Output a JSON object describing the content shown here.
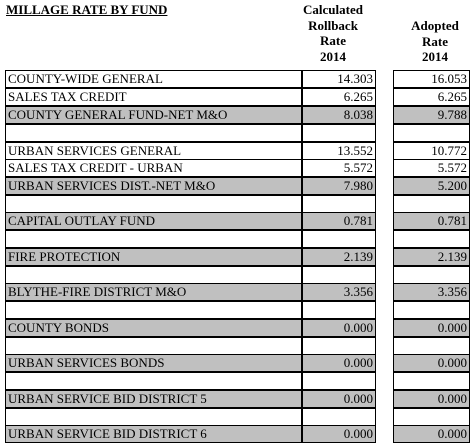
{
  "header": {
    "title": "MILLAGE RATE BY FUND",
    "calc_lines": [
      "Calculated",
      "Rollback",
      "Rate",
      "2014"
    ],
    "adopt_lines": [
      "Adopted",
      "Rate",
      "2014"
    ]
  },
  "rows": [
    {
      "label": "COUNTY-WIDE GENERAL",
      "rollback": "14.303",
      "adopted": "16.053"
    },
    {
      "label": "SALES TAX CREDIT",
      "rollback": "6.265",
      "adopted": "6.265"
    },
    {
      "label": "COUNTY GENERAL FUND-NET M&O",
      "rollback": "8.038",
      "adopted": "9.788"
    },
    {
      "label": "",
      "rollback": "",
      "adopted": ""
    },
    {
      "label": "URBAN SERVICES GENERAL",
      "rollback": "13.552",
      "adopted": "10.772"
    },
    {
      "label": "SALES TAX CREDIT - URBAN",
      "rollback": "5.572",
      "adopted": "5.572"
    },
    {
      "label": "URBAN SERVICES DIST.-NET M&O",
      "rollback": "7.980",
      "adopted": "5.200"
    },
    {
      "label": "",
      "rollback": "",
      "adopted": ""
    },
    {
      "label": "CAPITAL OUTLAY FUND",
      "rollback": "0.781",
      "adopted": "0.781"
    },
    {
      "label": "",
      "rollback": "",
      "adopted": ""
    },
    {
      "label": "FIRE PROTECTION",
      "rollback": "2.139",
      "adopted": "2.139"
    },
    {
      "label": "",
      "rollback": "",
      "adopted": ""
    },
    {
      "label": "BLYTHE-FIRE DISTRICT M&O",
      "rollback": "3.356",
      "adopted": "3.356"
    },
    {
      "label": "",
      "rollback": "",
      "adopted": ""
    },
    {
      "label": "COUNTY BONDS",
      "rollback": "0.000",
      "adopted": "0.000"
    },
    {
      "label": "",
      "rollback": "",
      "adopted": ""
    },
    {
      "label": "URBAN SERVICES BONDS",
      "rollback": "0.000",
      "adopted": "0.000"
    },
    {
      "label": "",
      "rollback": "",
      "adopted": ""
    },
    {
      "label": "URBAN SERVICE BID DISTRICT 5",
      "rollback": "0.000",
      "adopted": "0.000"
    },
    {
      "label": "",
      "rollback": "",
      "adopted": ""
    },
    {
      "label": "URBAN SERVICE BID DISTRICT 6",
      "rollback": "0.000",
      "adopted": "0.000"
    }
  ],
  "colors": {
    "shade": "#c0c0c0",
    "border": "#000000"
  }
}
